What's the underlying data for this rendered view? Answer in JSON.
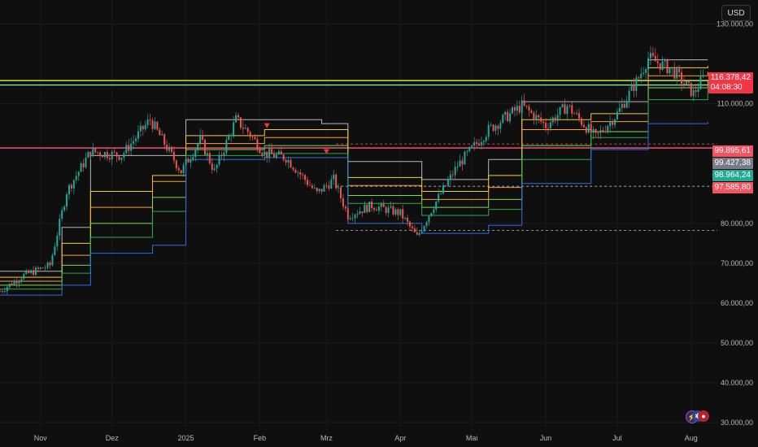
{
  "currency": "USD",
  "chart_data": {
    "type": "line",
    "ylim": [
      28000,
      136000
    ],
    "xlim": [
      "2024-10-15",
      "2025-08-12"
    ],
    "grid": true,
    "y_ticks": [
      "130.000,00",
      "110.000,00",
      "80.000,00",
      "70.000,00",
      "60.000,00",
      "50.000,00",
      "40.000,00",
      "30.000,00"
    ],
    "y_tick_values": [
      130000,
      110000,
      80000,
      70000,
      60000,
      50000,
      40000,
      30000
    ],
    "x_ticks": [
      {
        "label": "Nov",
        "date": "2024-11-01"
      },
      {
        "label": "Dez",
        "date": "2024-12-01"
      },
      {
        "label": "2025",
        "date": "2025-01-01"
      },
      {
        "label": "Feb",
        "date": "2025-02-01"
      },
      {
        "label": "Mrz",
        "date": "2025-03-01"
      },
      {
        "label": "Apr",
        "date": "2025-04-01"
      },
      {
        "label": "Mai",
        "date": "2025-05-01"
      },
      {
        "label": "Jun",
        "date": "2025-06-01"
      },
      {
        "label": "Jul",
        "date": "2025-07-01"
      },
      {
        "label": "Aug",
        "date": "2025-08-01"
      }
    ],
    "price_labels": [
      {
        "value": 116378.42,
        "text": "116.378,42",
        "sub": "04:08:30",
        "color": "#f23645"
      },
      {
        "value": 99895.61,
        "text": "99.895,61",
        "color": "#f7525f"
      },
      {
        "value": 99427.38,
        "text": "99.427,38",
        "color": "#787b86"
      },
      {
        "value": 98964.24,
        "text": "98.964,24",
        "color": "#22ab94"
      },
      {
        "value": 97585.8,
        "text": "97.585,80",
        "color": "#f7525f"
      }
    ],
    "horizontal_lines": [
      {
        "value": 115800,
        "color": "#c6e84b"
      },
      {
        "value": 114700,
        "color": "#7ee2a8"
      },
      {
        "value": 98900,
        "color": "#ff5b72"
      },
      {
        "value": 99900,
        "color": "#ff5b72",
        "dashed": true
      },
      {
        "value": 89300,
        "color": "#bdbdbd",
        "dashed": true
      },
      {
        "value": 78200,
        "color": "#bdbdbd",
        "dashed": true
      }
    ],
    "price_series": {
      "name": "",
      "x": [
        "2024-10-15",
        "2024-10-25",
        "2024-11-05",
        "2024-11-12",
        "2024-11-22",
        "2024-12-05",
        "2024-12-17",
        "2024-12-30",
        "2025-01-07",
        "2025-01-13",
        "2025-01-22",
        "2025-01-27",
        "2025-02-03",
        "2025-02-12",
        "2025-02-25",
        "2025-03-04",
        "2025-03-10",
        "2025-03-20",
        "2025-04-01",
        "2025-04-08",
        "2025-04-15",
        "2025-04-25",
        "2025-05-08",
        "2025-05-22",
        "2025-06-01",
        "2025-06-10",
        "2025-06-22",
        "2025-07-01",
        "2025-07-10",
        "2025-07-14",
        "2025-07-24",
        "2025-08-02",
        "2025-08-06"
      ],
      "y": [
        63000,
        67000,
        69500,
        88000,
        98000,
        97000,
        106000,
        93000,
        101000,
        93000,
        106000,
        103000,
        97500,
        96500,
        87500,
        91000,
        82000,
        84500,
        82500,
        76500,
        84500,
        94500,
        103500,
        109500,
        104500,
        109500,
        101500,
        107500,
        116500,
        121500,
        118500,
        112500,
        116378
      ]
    },
    "bands": [
      {
        "name": "",
        "color": "#b9b9b9",
        "x": [
          "2024-10-15",
          "2024-11-10",
          "2024-11-22",
          "2024-12-18",
          "2025-01-01",
          "2025-02-03",
          "2025-02-27",
          "2025-03-10",
          "2025-04-10",
          "2025-05-08",
          "2025-05-22",
          "2025-06-20",
          "2025-07-14",
          "2025-08-08"
        ],
        "y": [
          68000,
          79000,
          97000,
          97000,
          106000,
          106000,
          105000,
          95500,
          91000,
          96000,
          110500,
          110500,
          121000,
          121000
        ]
      },
      {
        "name": "",
        "color": "#f6c945",
        "x": [
          "2024-10-15",
          "2024-11-10",
          "2024-11-22",
          "2024-12-18",
          "2025-01-01",
          "2025-02-03",
          "2025-02-27",
          "2025-03-10",
          "2025-04-10",
          "2025-05-08",
          "2025-05-22",
          "2025-06-20",
          "2025-07-14",
          "2025-08-08"
        ],
        "y": [
          66500,
          75000,
          88000,
          92000,
          102000,
          103500,
          103500,
          91500,
          88000,
          92000,
          106000,
          107500,
          119000,
          119500
        ]
      },
      {
        "name": "",
        "color": "#f7a23a",
        "x": [
          "2024-10-15",
          "2024-11-10",
          "2024-11-22",
          "2024-12-18",
          "2025-01-01",
          "2025-02-03",
          "2025-02-27",
          "2025-03-10",
          "2025-04-10",
          "2025-05-08",
          "2025-05-22",
          "2025-06-20",
          "2025-07-14",
          "2025-08-08"
        ],
        "y": [
          65500,
          72000,
          84000,
          90500,
          100000,
          101500,
          101500,
          89500,
          86000,
          89000,
          103500,
          105500,
          117000,
          118000
        ]
      },
      {
        "name": "",
        "color": "#7ed957",
        "x": [
          "2024-10-15",
          "2024-11-10",
          "2024-11-22",
          "2024-12-18",
          "2025-01-01",
          "2025-02-03",
          "2025-02-27",
          "2025-03-10",
          "2025-04-10",
          "2025-05-08",
          "2025-05-22",
          "2025-06-20",
          "2025-07-14",
          "2025-08-08"
        ],
        "y": [
          64500,
          69500,
          80000,
          86500,
          98500,
          99500,
          99500,
          87000,
          84000,
          86000,
          99500,
          103000,
          114000,
          116000
        ]
      },
      {
        "name": "",
        "color": "#2fa84f",
        "x": [
          "2024-10-15",
          "2024-11-10",
          "2024-11-22",
          "2024-12-18",
          "2025-01-01",
          "2025-02-03",
          "2025-02-27",
          "2025-03-10",
          "2025-04-10",
          "2025-05-08",
          "2025-05-22",
          "2025-06-20",
          "2025-07-14",
          "2025-08-08"
        ],
        "y": [
          63500,
          67500,
          76500,
          83000,
          97000,
          97500,
          97500,
          85000,
          82000,
          83500,
          96000,
          101500,
          111000,
          114500
        ]
      },
      {
        "name": "",
        "color": "#2f6de0",
        "x": [
          "2024-10-15",
          "2024-11-10",
          "2024-11-22",
          "2024-12-18",
          "2025-01-01",
          "2025-02-03",
          "2025-02-27",
          "2025-03-10",
          "2025-04-10",
          "2025-05-08",
          "2025-05-22",
          "2025-06-20",
          "2025-07-14",
          "2025-08-08"
        ],
        "y": [
          62000,
          64500,
          72500,
          74500,
          96000,
          96500,
          96500,
          80000,
          77500,
          79500,
          90000,
          98500,
          105000,
          105500
        ]
      }
    ],
    "markers": [
      {
        "date": "2025-02-04",
        "value": 104500,
        "symbol": "triangle-down",
        "color": "#f23645"
      },
      {
        "date": "2025-03-01",
        "value": 98000,
        "symbol": "triangle-down",
        "color": "#f23645"
      }
    ]
  }
}
